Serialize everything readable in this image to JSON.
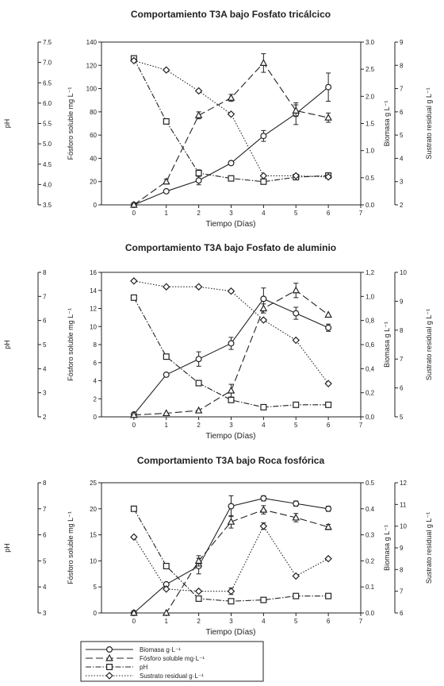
{
  "chart_data": [
    {
      "type": "line",
      "title": "Comportamiento T3A bajo Fosfato tricálcico",
      "xlabel": "Tiempo (Días)",
      "xlim": [
        -1,
        7
      ],
      "xticks": [
        "0",
        "1",
        "2",
        "3",
        "4",
        "5",
        "6",
        "7"
      ],
      "axes": {
        "ph": {
          "label": "pH",
          "lim": [
            3.5,
            7.5
          ],
          "ticks": [
            "3.5",
            "4.0",
            "4.5",
            "5.0",
            "5.5",
            "6.0",
            "6.5",
            "7.0",
            "7.5"
          ]
        },
        "fosforo": {
          "label": "Fósforo soluble mg L⁻¹",
          "lim": [
            0,
            140
          ],
          "ticks": [
            "0",
            "20",
            "40",
            "60",
            "80",
            "100",
            "120",
            "140"
          ]
        },
        "biomasa": {
          "label": "Biomasa g L⁻¹",
          "lim": [
            0,
            3
          ],
          "ticks": [
            "0.0",
            "0.5",
            "1.0",
            "1.5",
            "2.0",
            "2.5",
            "3.0"
          ]
        },
        "sustrato": {
          "label": "Sustrato residual g L⁻¹",
          "lim": [
            2,
            9
          ],
          "ticks": [
            "2",
            "3",
            "4",
            "5",
            "6",
            "7",
            "8",
            "9"
          ]
        }
      },
      "series": [
        {
          "key": "biomasa",
          "axis": "biomasa",
          "x": [
            0,
            1,
            2,
            3,
            4,
            5,
            6
          ],
          "values": [
            0.0,
            0.25,
            0.45,
            0.77,
            1.27,
            1.68,
            2.17
          ],
          "errors": [
            0,
            0.02,
            0.08,
            0.03,
            0.1,
            0.2,
            0.26
          ]
        },
        {
          "key": "fosforo",
          "axis": "fosforo",
          "x": [
            0,
            1,
            2,
            3,
            4,
            5,
            6
          ],
          "values": [
            0,
            20,
            77,
            92,
            122,
            81,
            75
          ],
          "errors": [
            0,
            2,
            3,
            3,
            8,
            5,
            4
          ]
        },
        {
          "key": "ph",
          "axis": "ph",
          "x": [
            0,
            1,
            2,
            3,
            4,
            5,
            6
          ],
          "values": [
            7.1,
            5.55,
            4.28,
            4.15,
            4.07,
            4.18,
            4.22
          ],
          "errors": [
            0,
            0,
            0.08,
            0,
            0,
            0,
            0
          ]
        },
        {
          "key": "sustrato",
          "axis": "sustrato",
          "x": [
            0,
            1,
            2,
            3,
            4,
            5,
            6
          ],
          "values": [
            8.2,
            7.8,
            6.9,
            5.9,
            3.25,
            3.25,
            3.2
          ],
          "errors": [
            0,
            0,
            0,
            0,
            0,
            0,
            0
          ]
        }
      ]
    },
    {
      "type": "line",
      "title": "Comportamiento T3A bajo Fosfato de aluminio",
      "xlabel": "Tiempo (Días)",
      "xlim": [
        -1,
        7
      ],
      "xticks": [
        "0",
        "1",
        "2",
        "3",
        "4",
        "5",
        "6",
        "7"
      ],
      "axes": {
        "ph": {
          "label": "pH",
          "lim": [
            2,
            8
          ],
          "ticks": [
            "2",
            "3",
            "4",
            "5",
            "6",
            "7",
            "8"
          ]
        },
        "fosforo": {
          "label": "Fósforo soluble mg L⁻¹",
          "lim": [
            0,
            16
          ],
          "ticks": [
            "0",
            "2",
            "4",
            "6",
            "8",
            "10",
            "12",
            "14",
            "16"
          ]
        },
        "biomasa": {
          "label": "Biomasa g L⁻¹",
          "lim": [
            0,
            1.2
          ],
          "ticks": [
            "0,0",
            "0,2",
            "0,4",
            "0,6",
            "0,8",
            "1,0",
            "1,2"
          ]
        },
        "sustrato": {
          "label": "Sustrato residual g L⁻¹",
          "lim": [
            5,
            10
          ],
          "ticks": [
            "5",
            "6",
            "7",
            "8",
            "9",
            "10"
          ]
        }
      },
      "series": [
        {
          "key": "biomasa",
          "axis": "biomasa",
          "x": [
            0,
            1,
            2,
            3,
            4,
            5,
            6
          ],
          "values": [
            0.02,
            0.35,
            0.48,
            0.61,
            0.98,
            0.86,
            0.74
          ],
          "errors": [
            0,
            0,
            0.06,
            0.05,
            0.09,
            0.05,
            0.03
          ]
        },
        {
          "key": "fosforo",
          "axis": "fosforo",
          "x": [
            0,
            1,
            2,
            3,
            4,
            5,
            6
          ],
          "values": [
            0.2,
            0.4,
            0.7,
            2.9,
            12.0,
            14.0,
            11.3
          ],
          "errors": [
            0,
            0,
            0,
            0.7,
            0.5,
            0.8,
            0
          ]
        },
        {
          "key": "ph",
          "axis": "ph",
          "x": [
            0,
            1,
            2,
            3,
            4,
            5,
            6
          ],
          "values": [
            6.95,
            4.5,
            3.4,
            2.7,
            2.4,
            2.5,
            2.5
          ],
          "errors": [
            0,
            0,
            0,
            0,
            0,
            0,
            0
          ]
        },
        {
          "key": "sustrato",
          "axis": "sustrato",
          "x": [
            0,
            1,
            2,
            3,
            4,
            5,
            6
          ],
          "values": [
            9.7,
            9.5,
            9.5,
            9.35,
            8.35,
            7.65,
            6.15
          ],
          "errors": [
            0,
            0,
            0,
            0,
            0,
            0,
            0
          ]
        }
      ]
    },
    {
      "type": "line",
      "title": "Comportamiento T3A bajo Roca fosfórica",
      "xlabel": "Tiempo (Días)",
      "xlim": [
        -1,
        7
      ],
      "xticks": [
        "0",
        "1",
        "2",
        "3",
        "4",
        "5",
        "6",
        "7"
      ],
      "axes": {
        "ph": {
          "label": "pH",
          "lim": [
            3,
            8
          ],
          "ticks": [
            "3",
            "4",
            "5",
            "6",
            "7",
            "8"
          ]
        },
        "fosforo": {
          "label": "Fósforo soluble mg L⁻¹",
          "lim": [
            0,
            25
          ],
          "ticks": [
            "0",
            "5",
            "10",
            "15",
            "20",
            "25"
          ]
        },
        "biomasa": {
          "label": "Biomasa g L⁻¹",
          "lim": [
            0,
            0.5
          ],
          "ticks": [
            "0.0",
            "0.1",
            "0.2",
            "0.3",
            "0.4",
            "0.5"
          ]
        },
        "sustrato": {
          "label": "Sustrato residual g L⁻¹",
          "lim": [
            6,
            12
          ],
          "ticks": [
            "6",
            "7",
            "8",
            "9",
            "10",
            "11",
            "12"
          ]
        }
      },
      "series": [
        {
          "key": "biomasa",
          "axis": "biomasa",
          "x": [
            0,
            1,
            2,
            3,
            4,
            5,
            6
          ],
          "values": [
            0.0,
            0.11,
            0.18,
            0.41,
            0.44,
            0.42,
            0.4
          ],
          "errors": [
            0,
            0,
            0.03,
            0.04,
            0.01,
            0.01,
            0.01
          ]
        },
        {
          "key": "fosforo",
          "axis": "fosforo",
          "x": [
            0,
            1,
            2,
            3,
            4,
            5,
            6
          ],
          "values": [
            0.0,
            0.0,
            10.0,
            17.5,
            19.8,
            18.3,
            16.5
          ],
          "errors": [
            0,
            0,
            1,
            1.2,
            0.8,
            0.8,
            0.5
          ]
        },
        {
          "key": "ph",
          "axis": "ph",
          "x": [
            0,
            1,
            2,
            3,
            4,
            5,
            6
          ],
          "values": [
            7.0,
            4.8,
            3.55,
            3.45,
            3.5,
            3.65,
            3.65
          ],
          "errors": [
            0,
            0,
            0,
            0,
            0,
            0,
            0
          ]
        },
        {
          "key": "sustrato",
          "axis": "sustrato",
          "x": [
            0,
            1,
            2,
            3,
            4,
            5,
            6
          ],
          "values": [
            9.5,
            7.1,
            7.0,
            7.0,
            10.0,
            7.7,
            8.5
          ],
          "errors": [
            0,
            0,
            0,
            0.15,
            0.15,
            0,
            0
          ]
        }
      ]
    }
  ],
  "legend": {
    "entries": [
      {
        "key": "biomasa",
        "label": "Biomasa g·L⁻¹"
      },
      {
        "key": "fosforo",
        "label": "Fósforo soluble mg·L⁻¹"
      },
      {
        "key": "ph",
        "label": "pH"
      },
      {
        "key": "sustrato",
        "label": "Sustrato residual g·L⁻¹"
      }
    ]
  },
  "styles": {
    "biomasa": {
      "dash": "",
      "marker": "circle",
      "color": "#222222"
    },
    "fosforo": {
      "dash": "9 4",
      "marker": "triangle",
      "color": "#222222"
    },
    "ph": {
      "dash": "7 2 1.5 2",
      "marker": "square",
      "color": "#222222"
    },
    "sustrato": {
      "dash": "1.5 2",
      "marker": "diamond",
      "color": "#222222"
    }
  }
}
